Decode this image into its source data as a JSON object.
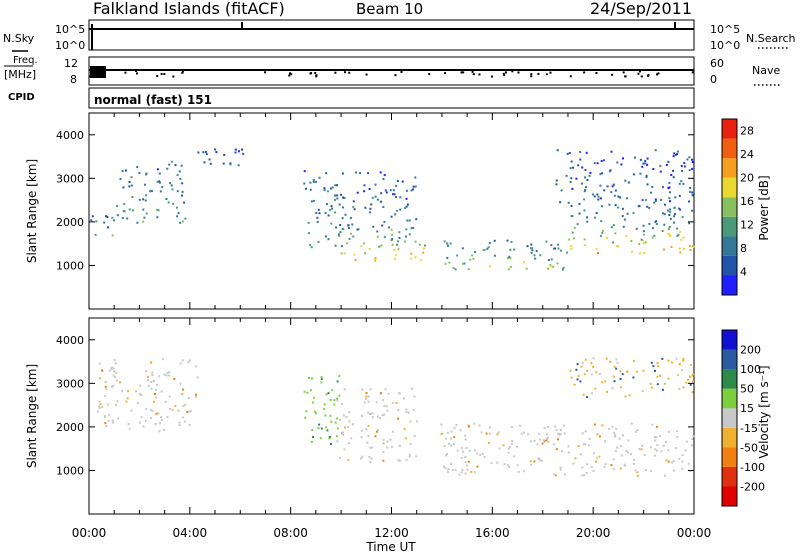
{
  "header": {
    "station": "Falkland Islands (fitACF)",
    "beam": "Beam 10",
    "date": "24/Sep/2011"
  },
  "left_labels": {
    "nsky": "N.Sky",
    "freq": "Freq.",
    "freq_unit": "[MHz]",
    "cpid": "CPID"
  },
  "right_labels": {
    "nsearch": "N.Search",
    "nave": "Nave"
  },
  "noise_panel": {
    "left_ticks": [
      "10^5",
      "10^0"
    ],
    "right_ticks": [
      "10^5",
      "10^0"
    ]
  },
  "freq_panel": {
    "left_ticks": [
      "12",
      "8"
    ],
    "right_ticks": [
      "60",
      "0"
    ]
  },
  "cpid_text": "normal (fast) 151",
  "colors": {
    "background": "#ffffff",
    "gs_gray": "#c8c8c8",
    "axis": "#000000"
  },
  "chart_data": [
    {
      "type": "heatmap",
      "panel": "power",
      "ylabel": "Slant Range [km]",
      "yticks": [
        "1000",
        "2000",
        "3000",
        "4000"
      ],
      "ylim": [
        0,
        4500
      ],
      "xlim_hours": [
        0,
        24
      ],
      "colorbar": {
        "label": "Power [dB]",
        "ticks": [
          "4",
          "8",
          "12",
          "16",
          "20",
          "24",
          "28"
        ],
        "range": [
          0,
          30
        ],
        "colors": [
          "#1f1fff",
          "#2255aa",
          "#337799",
          "#4a9a7a",
          "#88c060",
          "#e8d830",
          "#f5a020",
          "#f06010",
          "#e82010"
        ]
      },
      "bands": [
        {
          "t0": 0.0,
          "t1": 1.0,
          "r0": 1600,
          "r1": 2200,
          "level": 14
        },
        {
          "t0": 1.0,
          "t1": 3.8,
          "r0": 2000,
          "r1": 3300,
          "level": 12
        },
        {
          "t0": 3.0,
          "t1": 6.2,
          "r0": 3300,
          "r1": 3700,
          "level": 8
        },
        {
          "t0": 8.5,
          "t1": 10.0,
          "r0": 1400,
          "r1": 3200,
          "level": 12
        },
        {
          "t0": 9.8,
          "t1": 13.3,
          "r0": 1100,
          "r1": 1800,
          "level": 22
        },
        {
          "t0": 10.0,
          "t1": 13.0,
          "r0": 1800,
          "r1": 3200,
          "level": 10
        },
        {
          "t0": 14.0,
          "t1": 19.0,
          "r0": 900,
          "r1": 1600,
          "level": 16
        },
        {
          "t0": 19.0,
          "t1": 24.0,
          "r0": 1300,
          "r1": 2100,
          "level": 20
        },
        {
          "t0": 18.5,
          "t1": 24.0,
          "r0": 2100,
          "r1": 3700,
          "level": 8
        }
      ]
    },
    {
      "type": "heatmap",
      "panel": "velocity",
      "ylabel": "Slant Range [km]",
      "yticks": [
        "1000",
        "2000",
        "3000",
        "4000"
      ],
      "ylim": [
        0,
        4500
      ],
      "xlim_hours": [
        0,
        24
      ],
      "xticks": [
        "00:00",
        "04:00",
        "08:00",
        "12:00",
        "16:00",
        "20:00",
        "00:00"
      ],
      "xlabel": "Time UT",
      "colorbar": {
        "label": "Velocity [m s⁻¹]",
        "ticks": [
          "200",
          "100",
          "50",
          "15",
          "-15",
          "-50",
          "-100",
          "-200"
        ],
        "colors": [
          "#1010d0",
          "#2a5aa0",
          "#2e8a4a",
          "#7cd040",
          "#c8c8c8",
          "#f0b030",
          "#f08010",
          "#e03010",
          "#e00000"
        ]
      },
      "bands": [
        {
          "t0": 0.3,
          "t1": 4.3,
          "r0": 1900,
          "r1": 3600,
          "kind": "gray"
        },
        {
          "t0": 8.5,
          "t1": 10.0,
          "r0": 1500,
          "r1": 3200,
          "kind": "green"
        },
        {
          "t0": 9.8,
          "t1": 13.0,
          "r0": 1200,
          "r1": 2900,
          "kind": "gray"
        },
        {
          "t0": 13.8,
          "t1": 24.0,
          "r0": 900,
          "r1": 2100,
          "kind": "gray"
        },
        {
          "t0": 19.0,
          "t1": 24.0,
          "r0": 2700,
          "r1": 3600,
          "kind": "orange"
        }
      ]
    }
  ]
}
